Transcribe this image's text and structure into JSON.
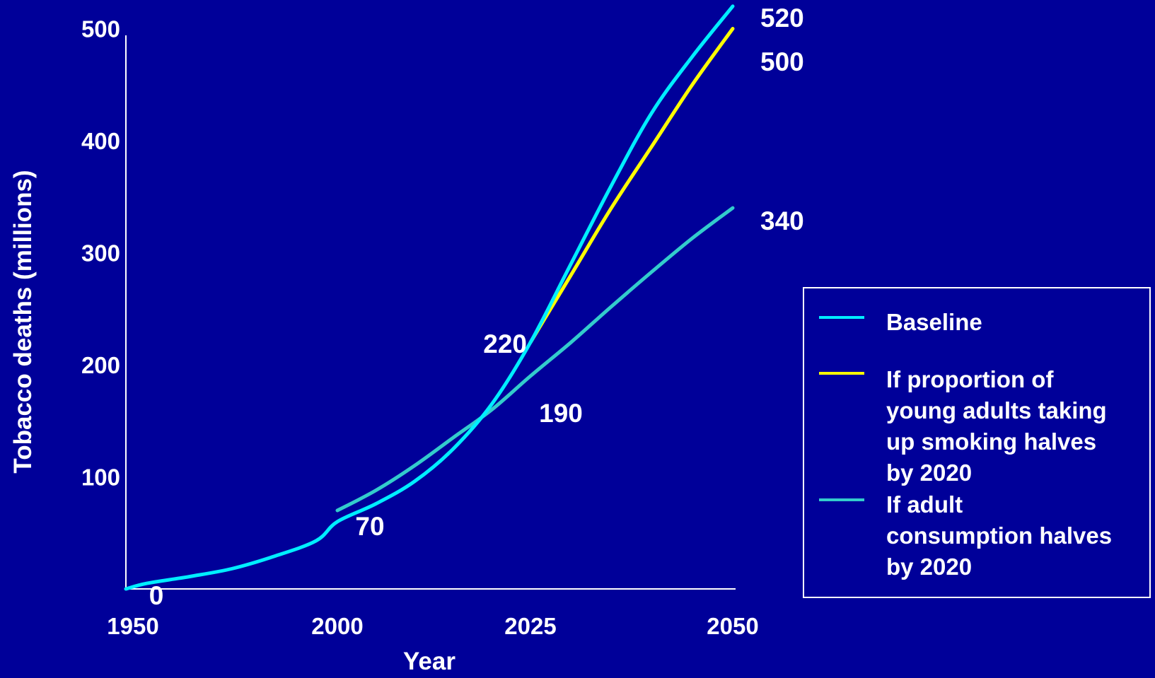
{
  "chart_data": {
    "type": "line",
    "xlabel": "Year",
    "ylabel": "Tobacco deaths (millions)",
    "x_ticks": [
      {
        "value": 1950,
        "label": "1950"
      },
      {
        "value": 2000,
        "label": "2000"
      },
      {
        "value": 2025,
        "label": "2025"
      },
      {
        "value": 2050,
        "label": "2050"
      }
    ],
    "y_ticks": [
      {
        "value": 100,
        "label": "100"
      },
      {
        "value": 200,
        "label": "200"
      },
      {
        "value": 300,
        "label": "300"
      },
      {
        "value": 400,
        "label": "400"
      },
      {
        "value": 500,
        "label": "500"
      }
    ],
    "series": [
      {
        "name": "Baseline",
        "color": "#00eeff",
        "points": [
          [
            1950,
            0
          ],
          [
            1955,
            5
          ],
          [
            1965,
            11
          ],
          [
            1975,
            18
          ],
          [
            1985,
            29
          ],
          [
            1995,
            43
          ],
          [
            2000,
            60
          ],
          [
            2005,
            76
          ],
          [
            2010,
            96
          ],
          [
            2015,
            125
          ],
          [
            2020,
            165
          ],
          [
            2025,
            220
          ],
          [
            2030,
            290
          ],
          [
            2035,
            360
          ],
          [
            2040,
            425
          ],
          [
            2045,
            475
          ],
          [
            2050,
            520
          ]
        ]
      },
      {
        "name": "If proportion of young adults taking up smoking halves by 2020",
        "color": "#ffff00",
        "points": [
          [
            2025,
            220
          ],
          [
            2030,
            280
          ],
          [
            2035,
            340
          ],
          [
            2040,
            395
          ],
          [
            2045,
            450
          ],
          [
            2050,
            500
          ]
        ]
      },
      {
        "name": "If adult consumption halves by 2020",
        "color": "#33cccc",
        "points": [
          [
            2000,
            70
          ],
          [
            2005,
            88
          ],
          [
            2010,
            110
          ],
          [
            2015,
            135
          ],
          [
            2020,
            160
          ],
          [
            2025,
            190
          ],
          [
            2030,
            220
          ],
          [
            2035,
            252
          ],
          [
            2040,
            283
          ],
          [
            2045,
            313
          ],
          [
            2050,
            340
          ]
        ]
      }
    ],
    "annotations": [
      {
        "text": "0"
      },
      {
        "text": "70"
      },
      {
        "text": "220"
      },
      {
        "text": "190"
      },
      {
        "text": "520"
      },
      {
        "text": "500"
      },
      {
        "text": "340"
      }
    ],
    "legend": {
      "placement": "right",
      "entries": [
        {
          "color": "#00eeff",
          "lines": [
            "Baseline"
          ]
        },
        {
          "color": "#ffff00",
          "lines": [
            "If proportion of",
            "young adults taking",
            "up smoking halves",
            "by 2020"
          ]
        },
        {
          "color": "#33cccc",
          "lines": [
            "If adult",
            "consumption halves",
            "by 2020"
          ]
        }
      ]
    }
  }
}
